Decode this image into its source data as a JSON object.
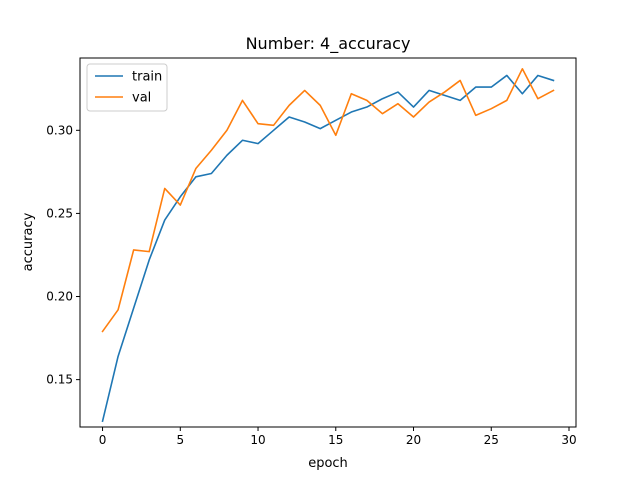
{
  "chart_data": {
    "type": "line",
    "title": "Number: 4_accuracy",
    "xlabel": "epoch",
    "ylabel": "accuracy",
    "xlim": [
      -1.45,
      30.45
    ],
    "ylim": [
      0.1215,
      0.3435
    ],
    "xticks": [
      0,
      5,
      10,
      15,
      20,
      25,
      30
    ],
    "yticks": [
      0.15,
      0.2,
      0.25,
      0.3
    ],
    "ytick_labels": [
      "0.15",
      "0.20",
      "0.25",
      "0.30"
    ],
    "grid": false,
    "legend_position": "top-left",
    "x": [
      0,
      1,
      2,
      3,
      4,
      5,
      6,
      7,
      8,
      9,
      10,
      11,
      12,
      13,
      14,
      15,
      16,
      17,
      18,
      19,
      20,
      21,
      22,
      23,
      24,
      25,
      26,
      27,
      28,
      29
    ],
    "series": [
      {
        "name": "train",
        "color": "#1f77b4",
        "values": [
          0.125,
          0.164,
          0.193,
          0.222,
          0.246,
          0.26,
          0.272,
          0.274,
          0.285,
          0.294,
          0.292,
          0.3,
          0.308,
          0.305,
          0.301,
          0.306,
          0.311,
          0.314,
          0.319,
          0.323,
          0.314,
          0.324,
          0.321,
          0.318,
          0.326,
          0.326,
          0.333,
          0.322,
          0.333,
          0.33
        ]
      },
      {
        "name": "val",
        "color": "#ff7f0e",
        "values": [
          0.179,
          0.192,
          0.228,
          0.227,
          0.265,
          0.255,
          0.277,
          0.288,
          0.3,
          0.318,
          0.304,
          0.303,
          0.315,
          0.324,
          0.315,
          0.297,
          0.322,
          0.318,
          0.31,
          0.316,
          0.308,
          0.317,
          0.323,
          0.33,
          0.309,
          0.313,
          0.318,
          0.337,
          0.319,
          0.324
        ]
      }
    ]
  }
}
